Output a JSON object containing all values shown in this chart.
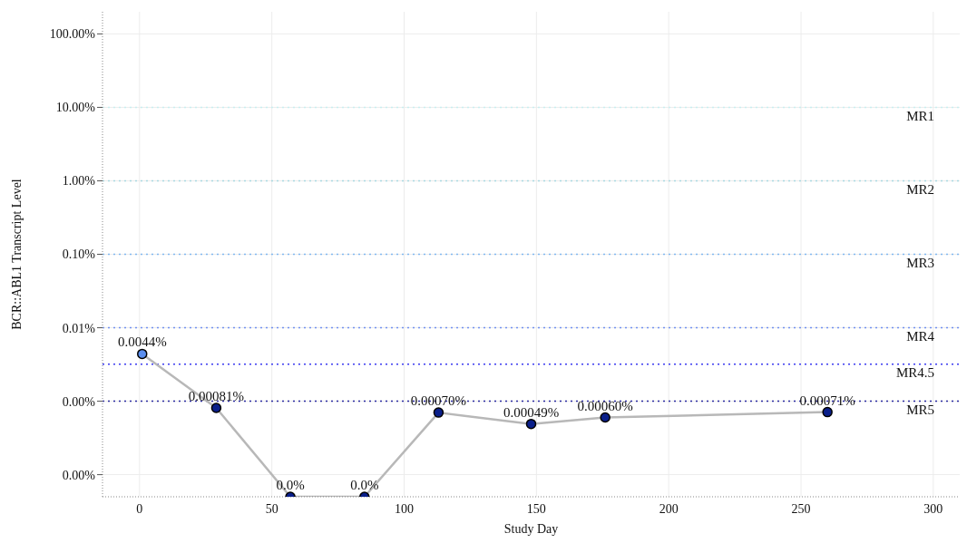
{
  "chart_data": {
    "type": "line",
    "xlabel": "Study Day",
    "ylabel": "BCR::ABL1 Transcript Level",
    "x": [
      1,
      29,
      57,
      85,
      113,
      148,
      176,
      260
    ],
    "series": [
      {
        "color": "#b8b8b8",
        "colors": [
          "#5b8ff0",
          "#0a1f8a",
          "#0a1f8a",
          "#0a1f8a",
          "#0a1f8a",
          "#0a1f8a",
          "#0a1f8a",
          "#0a1f8a"
        ],
        "values": [
          0.0044,
          0.00081,
          5e-05,
          5e-05,
          0.0007,
          0.00049,
          0.0006,
          0.00071
        ],
        "value_labels": [
          "0.0044%",
          "0.00081%",
          "0.0%",
          "0.0%",
          "0.00070%",
          "0.00049%",
          "0.00060%",
          "0.00071%"
        ]
      }
    ],
    "log": "y",
    "marker": "circle",
    "grid": true,
    "line_style": "solid",
    "xlim": [
      -14,
      310
    ],
    "xticks": [
      0,
      50,
      100,
      150,
      200,
      250,
      300
    ],
    "ylim": [
      5e-05,
      200
    ],
    "yticks": [
      {
        "value": 100,
        "label": "100.00%"
      },
      {
        "value": 10,
        "label": "10.00%"
      },
      {
        "value": 1,
        "label": "1.00%"
      },
      {
        "value": 0.1,
        "label": "0.10%"
      },
      {
        "value": 0.01,
        "label": "0.01%"
      },
      {
        "value": 0.001,
        "label": "0.00%"
      },
      {
        "value": 0.0001,
        "label": "0.00%"
      }
    ],
    "ref_lines": [
      {
        "axis": "y",
        "value": 10,
        "label": "MR1",
        "color": "#c8eef0",
        "line_style": "dotted"
      },
      {
        "axis": "y",
        "value": 1,
        "label": "MR2",
        "color": "#a8d8e0",
        "line_style": "dotted"
      },
      {
        "axis": "y",
        "value": 0.1,
        "label": "MR3",
        "color": "#80b8f0",
        "line_style": "dotted"
      },
      {
        "axis": "y",
        "value": 0.01,
        "label": "MR4",
        "color": "#6f8ff0",
        "line_style": "dotted"
      },
      {
        "axis": "y",
        "value": 0.0032,
        "label": "MR4.5",
        "color": "#3a3af0",
        "line_style": "dotted"
      },
      {
        "axis": "y",
        "value": 0.001,
        "label": "MR5",
        "color": "#2a2aa0",
        "line_style": "dotted"
      }
    ]
  }
}
